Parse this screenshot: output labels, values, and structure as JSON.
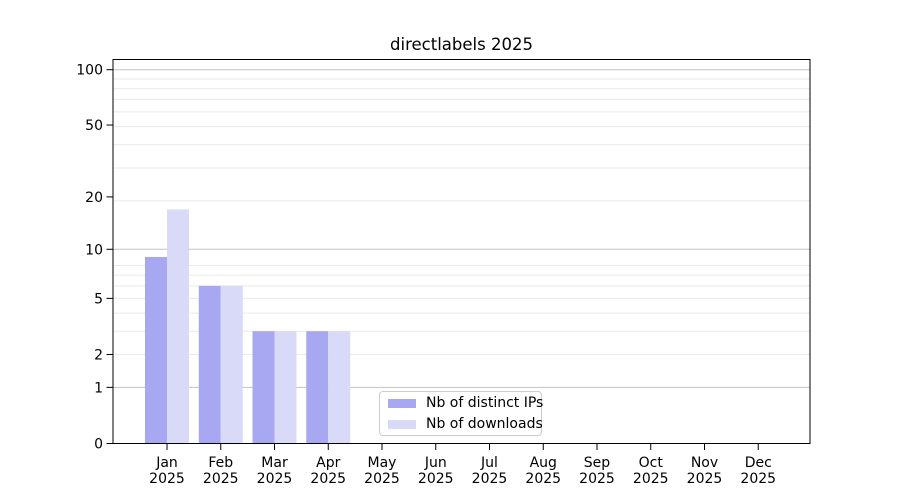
{
  "title": "directlabels 2025",
  "chart_data": {
    "type": "bar",
    "title": "directlabels 2025",
    "xlabel": "",
    "ylabel": "",
    "x_months": [
      "Jan",
      "Feb",
      "Mar",
      "Apr",
      "May",
      "Jun",
      "Jul",
      "Aug",
      "Sep",
      "Oct",
      "Nov",
      "Dec"
    ],
    "x_year": "2025",
    "series": [
      {
        "name": "Nb of distinct IPs",
        "color": "#a8a8f2",
        "values": [
          9,
          6,
          3,
          3,
          0,
          0,
          0,
          0,
          0,
          0,
          0,
          0
        ]
      },
      {
        "name": "Nb of downloads",
        "color": "#d9d9f8",
        "values": [
          17,
          6,
          3,
          3,
          0,
          0,
          0,
          0,
          0,
          0,
          0,
          0
        ]
      }
    ],
    "y_scale": "log10(1+value)",
    "y_ticks": [
      100,
      50,
      20,
      10,
      5,
      2,
      1,
      0
    ],
    "ylim": [
      0,
      114
    ],
    "grid": {
      "major_at_values": [
        100,
        10,
        1
      ],
      "minor_at_value_plus_1": [
        3,
        4,
        5,
        6,
        7,
        8,
        9,
        20,
        30,
        40,
        50,
        60,
        70,
        80,
        90
      ],
      "major_color": "#c3c3c3",
      "minor_color": "#eaeaea"
    },
    "legend_position": "lower center, inside axes"
  },
  "colors": {
    "background": "#ffffff",
    "axis": "#000000",
    "text": "#000000",
    "bar_distinct_ips": "#a8a8f2",
    "bar_downloads": "#d9d9f8"
  }
}
